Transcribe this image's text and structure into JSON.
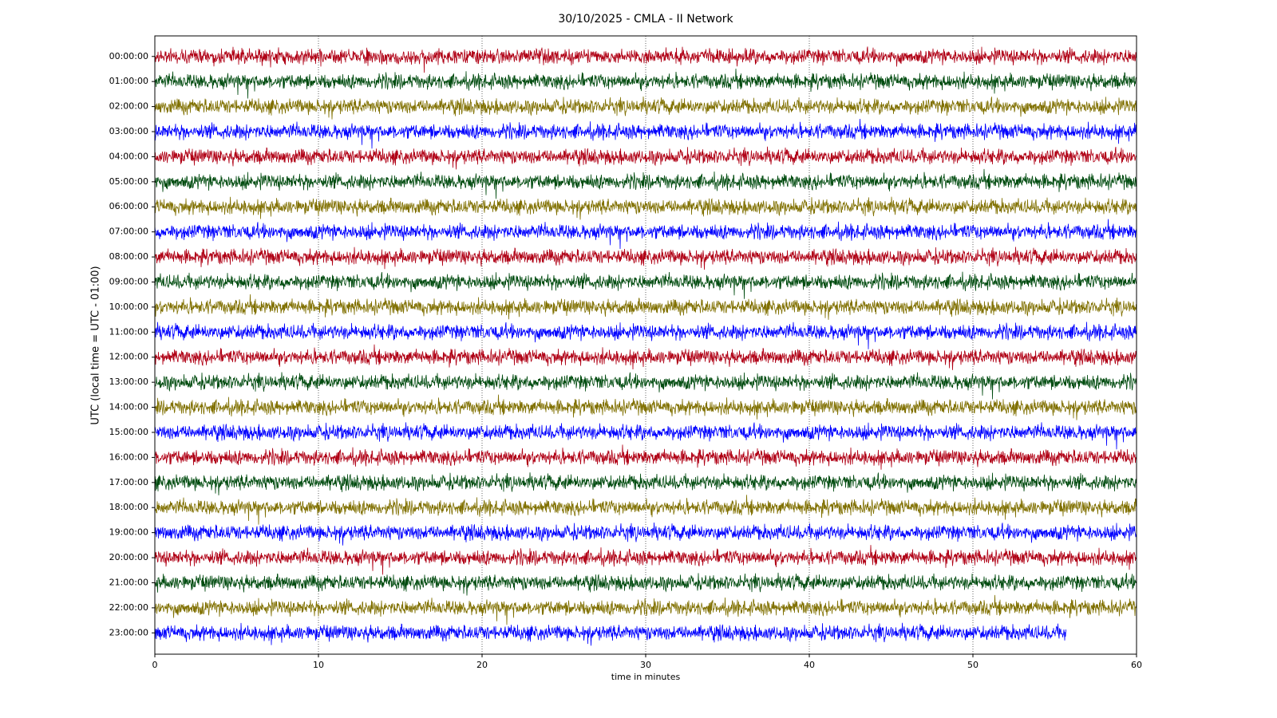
{
  "chart_data": {
    "type": "helicorder",
    "title": "30/10/2025 - CMLA - II Network",
    "x_label": "time in minutes",
    "y_label": "UTC (local time = UTC - 01:00)",
    "xlim": [
      0,
      60
    ],
    "xticks": [
      0,
      10,
      20,
      30,
      40,
      50,
      60
    ],
    "grid": true,
    "rows": [
      {
        "label": "00:00:00",
        "color": "#b00015",
        "end": 60
      },
      {
        "label": "01:00:00",
        "color": "#004b0f",
        "end": 60
      },
      {
        "label": "02:00:00",
        "color": "#807000",
        "end": 60
      },
      {
        "label": "03:00:00",
        "color": "#0000ff",
        "end": 60
      },
      {
        "label": "04:00:00",
        "color": "#b00015",
        "end": 60
      },
      {
        "label": "05:00:00",
        "color": "#004b0f",
        "end": 60
      },
      {
        "label": "06:00:00",
        "color": "#807000",
        "end": 60
      },
      {
        "label": "07:00:00",
        "color": "#0000ff",
        "end": 60
      },
      {
        "label": "08:00:00",
        "color": "#b00015",
        "end": 60
      },
      {
        "label": "09:00:00",
        "color": "#004b0f",
        "end": 60
      },
      {
        "label": "10:00:00",
        "color": "#807000",
        "end": 60
      },
      {
        "label": "11:00:00",
        "color": "#0000ff",
        "end": 60
      },
      {
        "label": "12:00:00",
        "color": "#b00015",
        "end": 60
      },
      {
        "label": "13:00:00",
        "color": "#004b0f",
        "end": 60
      },
      {
        "label": "14:00:00",
        "color": "#807000",
        "end": 60
      },
      {
        "label": "15:00:00",
        "color": "#0000ff",
        "end": 60
      },
      {
        "label": "16:00:00",
        "color": "#b00015",
        "end": 60
      },
      {
        "label": "17:00:00",
        "color": "#004b0f",
        "end": 60
      },
      {
        "label": "18:00:00",
        "color": "#807000",
        "end": 60
      },
      {
        "label": "19:00:00",
        "color": "#0000ff",
        "end": 60
      },
      {
        "label": "20:00:00",
        "color": "#b00015",
        "end": 60
      },
      {
        "label": "21:00:00",
        "color": "#004b0f",
        "end": 60
      },
      {
        "label": "22:00:00",
        "color": "#807000",
        "end": 60
      },
      {
        "label": "23:00:00",
        "color": "#0000ff",
        "end": 55.7
      }
    ]
  }
}
